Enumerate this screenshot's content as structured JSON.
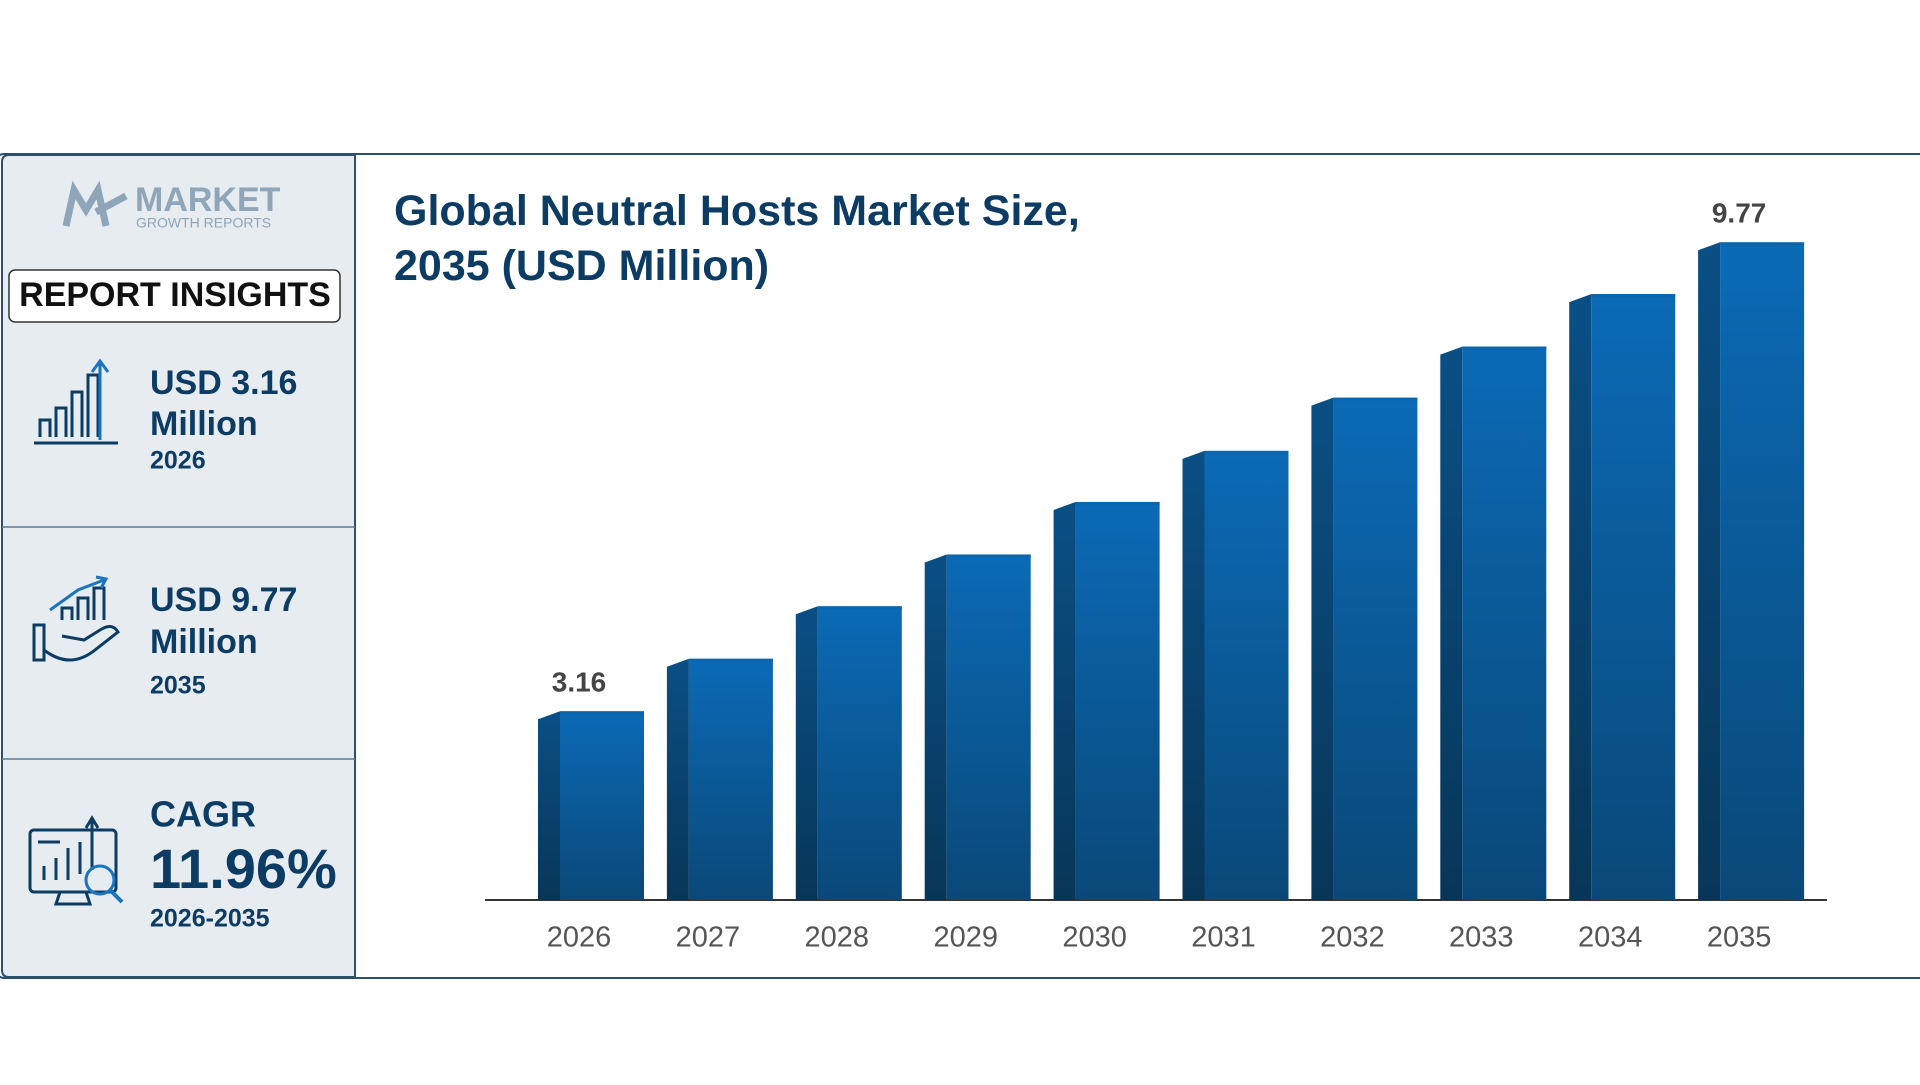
{
  "sidebar": {
    "logo": {
      "name": "MARKET",
      "tagline": "GROWTH REPORTS"
    },
    "badge": "REPORT INSIGHTS",
    "insights": [
      {
        "value": "USD 3.16",
        "unit": "Million",
        "year": "2026"
      },
      {
        "value": "USD 9.77",
        "unit": "Million",
        "year": "2035"
      }
    ],
    "cagr": {
      "label": "CAGR",
      "value": "11.96%",
      "period": "2026-2035"
    }
  },
  "chart_data": {
    "type": "bar",
    "title": "Global Neutral Hosts Market Size, 2035 (USD Million)",
    "categories": [
      "2026",
      "2027",
      "2028",
      "2029",
      "2030",
      "2031",
      "2032",
      "2033",
      "2034",
      "2035"
    ],
    "values": [
      3.16,
      3.9,
      4.64,
      5.37,
      6.11,
      6.83,
      7.58,
      8.3,
      9.04,
      9.77
    ],
    "value_labels": [
      "3.16",
      null,
      null,
      null,
      null,
      null,
      null,
      null,
      null,
      "9.77"
    ],
    "color": "#0b66ad",
    "ylim": [
      0.5,
      10.5
    ]
  }
}
